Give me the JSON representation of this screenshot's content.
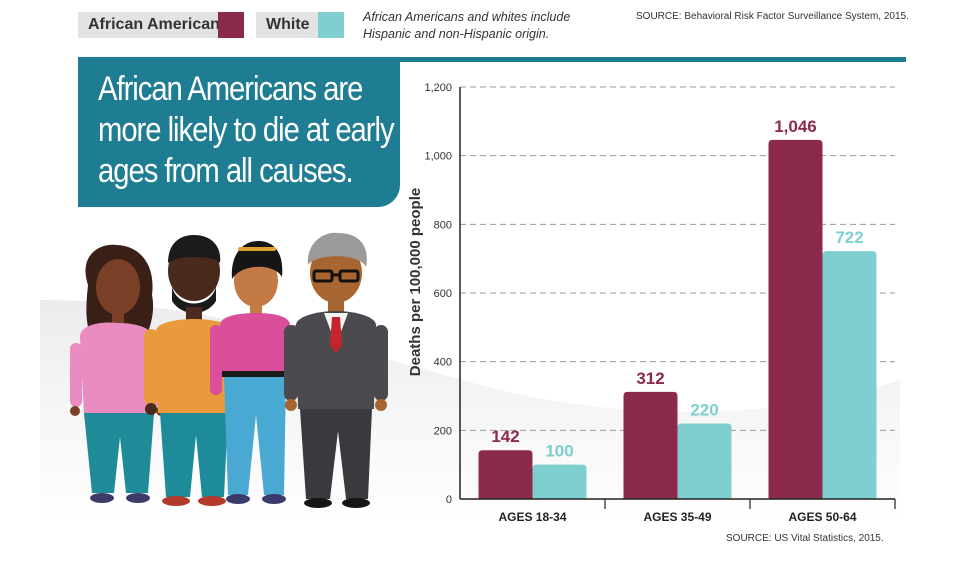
{
  "legend": {
    "african_american_label": "African American",
    "white_label": "White"
  },
  "note": "African Americans and whites include Hispanic and non-Hispanic origin.",
  "source_top": "SOURCE: Behavioral Risk Factor Surveillance System, 2015.",
  "headline": [
    "African Americans are",
    "more likely to die at early",
    "ages from all causes."
  ],
  "source_bottom": "SOURCE: US Vital Statistics, 2015.",
  "colors": {
    "african_american": "#8b2a4c",
    "white": "#7fcfd1",
    "brand_teal": "#1e7c93"
  },
  "chart_data": {
    "type": "bar",
    "title": "",
    "xlabel": "",
    "ylabel": "Deaths per 100,000 people",
    "ylim": [
      0,
      1200
    ],
    "yticks": [
      0,
      200,
      400,
      600,
      800,
      1000,
      1200
    ],
    "ytick_labels": [
      "0",
      "200",
      "400",
      "600",
      "800",
      "1,000",
      "1,200"
    ],
    "grid": true,
    "categories": [
      "AGES 18-34",
      "AGES 35-49",
      "AGES 50-64"
    ],
    "series": [
      {
        "name": "African American",
        "values": [
          142,
          312,
          1046
        ],
        "labels": [
          "142",
          "312",
          "1,046"
        ],
        "color": "#8b2a4c"
      },
      {
        "name": "White",
        "values": [
          100,
          220,
          722
        ],
        "labels": [
          "100",
          "220",
          "722"
        ],
        "color": "#7fcfd1"
      }
    ]
  }
}
